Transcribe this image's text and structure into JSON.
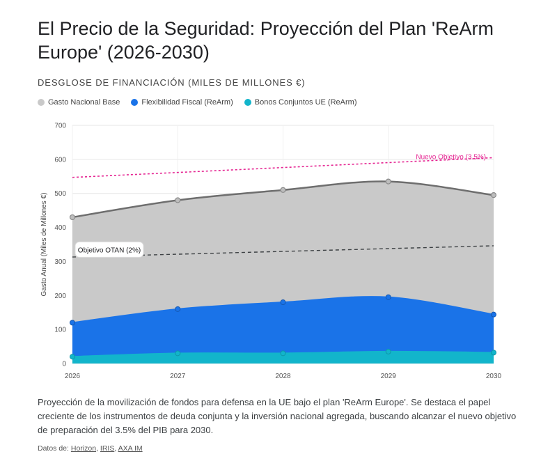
{
  "header": {
    "title": "El Precio de la Seguridad: Proyección del Plan 'ReArm Europe' (2026-2030)",
    "subtitle": "DESGLOSE DE FINANCIACIÓN (MILES DE MILLONES €)"
  },
  "colors": {
    "base": "#c9c9c9",
    "base_line": "#6e6e6e",
    "fiscal": "#1a73e8",
    "bonds": "#12b5cb",
    "target_new": "#e52592",
    "target_nato": "#3c4043"
  },
  "chart_data": {
    "type": "area",
    "stacked": true,
    "x": [
      "2026",
      "2027",
      "2028",
      "2029",
      "2030"
    ],
    "series": [
      {
        "name": "Bonos Conjuntos UE (ReArm)",
        "values": [
          20,
          30,
          30,
          35,
          32
        ]
      },
      {
        "name": "Flexibilidad Fiscal (ReArm)",
        "values": [
          100,
          130,
          150,
          160,
          112
        ]
      },
      {
        "name": "Gasto Nacional Base",
        "values": [
          310,
          320,
          330,
          340,
          351
        ]
      }
    ],
    "totals": [
      430,
      480,
      510,
      535,
      495
    ],
    "reference_lines": [
      {
        "name": "Nuevo Objetivo (3.5%)",
        "start": 547,
        "end": 605,
        "style": "dotted"
      },
      {
        "name": "Objetivo OTAN (2%)",
        "start": 313,
        "end": 346,
        "style": "dashed"
      }
    ],
    "ylabel": "Gasto Anual (Miles de Millones €)",
    "xlabel": "",
    "ylim": [
      0,
      700
    ],
    "yticks": [
      0,
      100,
      200,
      300,
      400,
      500,
      600,
      700
    ],
    "legend": [
      "Gasto Nacional Base",
      "Flexibilidad Fiscal (ReArm)",
      "Bonos Conjuntos UE (ReArm)"
    ],
    "legend_position": "top-left",
    "grid": true
  },
  "caption": "Proyección de la movilización de fondos para defensa en la UE bajo el plan 'ReArm Europe'. Se destaca el papel creciente de los instrumentos de deuda conjunta y la inversión nacional agregada, buscando alcanzar el nuevo objetivo de preparación del 3.5% del PIB para 2030.",
  "sources": {
    "label": "Datos de:",
    "links": [
      "Horizon",
      "IRIS",
      "AXA IM"
    ]
  }
}
